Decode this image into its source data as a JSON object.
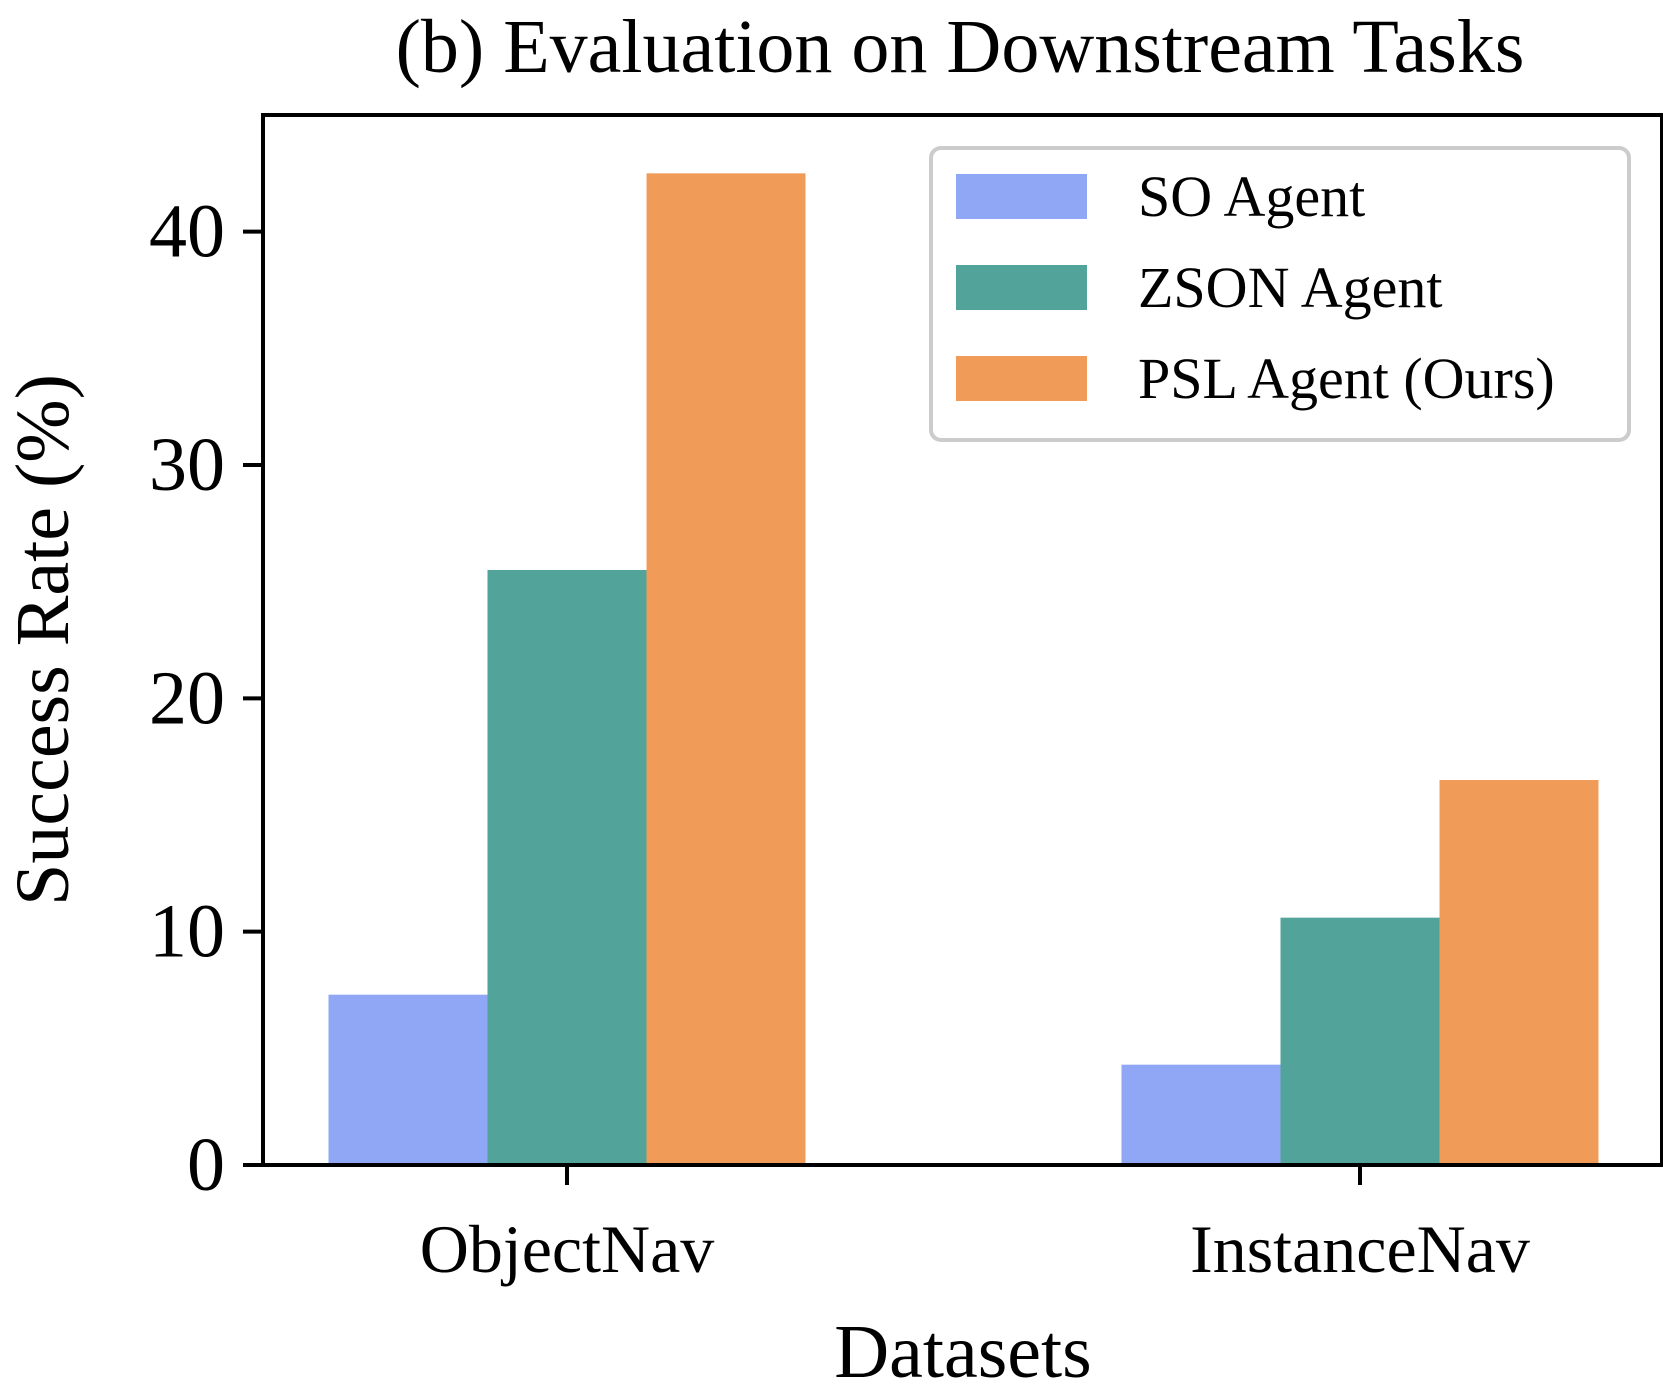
{
  "chart_data": {
    "type": "bar",
    "title": "(b) Evaluation on Downstream Tasks",
    "xlabel": "Datasets",
    "ylabel": "Success Rate (%)",
    "categories": [
      "ObjectNav",
      "InstanceNav"
    ],
    "series": [
      {
        "name": "SO Agent",
        "color": "#8fa7f5",
        "values": [
          7.3,
          4.3
        ]
      },
      {
        "name": "ZSON Agent",
        "color": "#52a399",
        "values": [
          25.5,
          10.6
        ]
      },
      {
        "name": "PSL Agent (Ours)",
        "color": "#f09c58",
        "values": [
          42.5,
          16.5
        ]
      }
    ],
    "ylim": [
      0,
      45
    ],
    "yticks": [
      0,
      10,
      20,
      30,
      40
    ],
    "ytick_labels": [
      "0",
      "10",
      "20",
      "30",
      "40"
    ],
    "grid": false,
    "legend_position": "top-right"
  }
}
